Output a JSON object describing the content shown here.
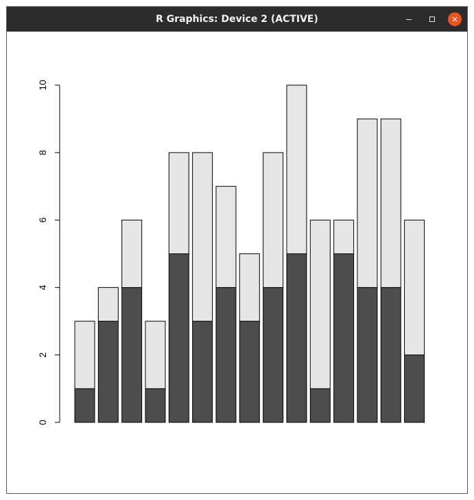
{
  "window": {
    "title": "R Graphics: Device 2 (ACTIVE)",
    "controls": {
      "close_glyph": "×"
    }
  },
  "chart_data": {
    "type": "bar",
    "stacked": true,
    "categories": [
      "",
      "",
      "",
      "",
      "",
      "",
      "",
      "",
      "",
      "",
      "",
      "",
      "",
      "",
      ""
    ],
    "series": [
      {
        "values": [
          1,
          3,
          4,
          1,
          5,
          3,
          4,
          3,
          4,
          5,
          1,
          5,
          4,
          4,
          2
        ],
        "color": "#4d4d4d"
      },
      {
        "values": [
          2,
          1,
          2,
          2,
          3,
          5,
          3,
          2,
          4,
          5,
          5,
          1,
          5,
          5,
          4
        ],
        "color": "#e6e6e6"
      }
    ],
    "title": "",
    "xlabel": "",
    "ylabel": "",
    "ylim": [
      0,
      10
    ],
    "yticks": [
      "0",
      "2",
      "4",
      "6",
      "8",
      "10"
    ],
    "grid": false,
    "legend": "none"
  }
}
